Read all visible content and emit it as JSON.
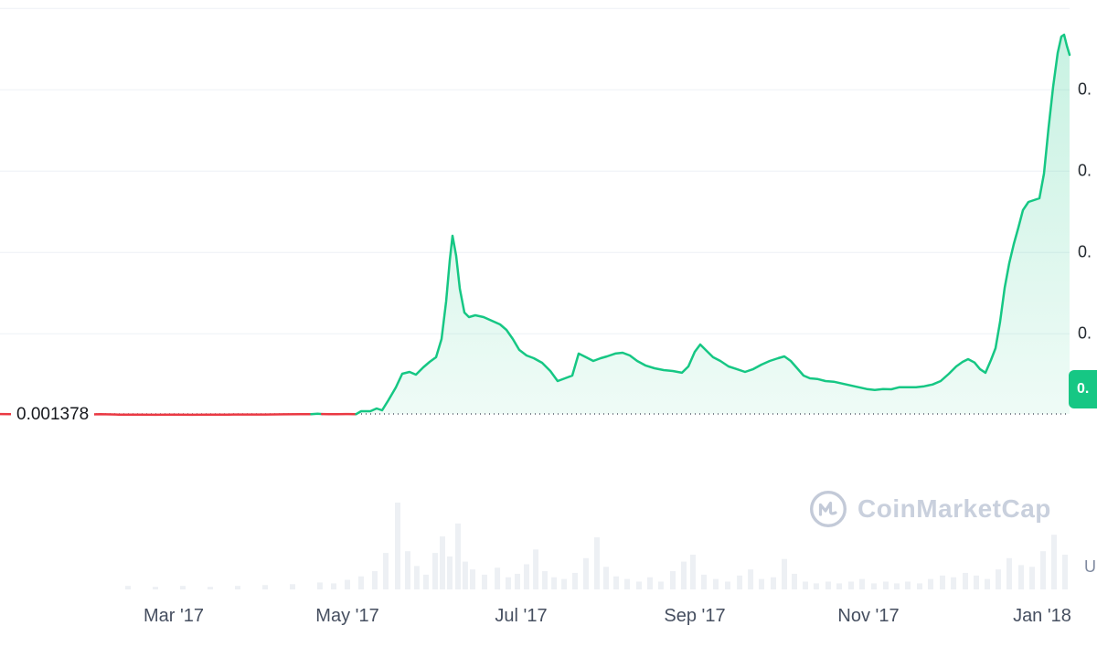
{
  "reference": {
    "price_label": "0.001378"
  },
  "badge": {
    "price_label": "0."
  },
  "watermark": {
    "brand": "CoinMarketCap"
  },
  "axis": {
    "x_labels": [
      "Mar '17",
      "May '17",
      "Jul '17",
      "Sep '17",
      "Nov '17",
      "Jan '18"
    ],
    "y_right_labels": [
      "0.",
      "0.",
      "0.",
      "0."
    ],
    "currency_partial_label": "U"
  },
  "chart_data": {
    "type": "area",
    "title": "",
    "x_tick_labels": [
      "Mar '17",
      "May '17",
      "Jul '17",
      "Sep '17",
      "Nov '17",
      "Jan '18"
    ],
    "y_tick_labels_visible": [
      "0.",
      "0.",
      "0.",
      "0."
    ],
    "reference_value": 0.001378,
    "y_gridline_values_estimated": [
      0.1,
      0.2,
      0.3,
      0.4,
      0.5
    ],
    "ylim": [
      0,
      0.52
    ],
    "legend": "off",
    "grid": "horizontal",
    "colors": {
      "up": "#16c784",
      "down": "#ea3943",
      "volume": "#edf0f4",
      "gridline": "#eef1f6",
      "reference_dots": "#565e6c"
    },
    "series": [
      {
        "name": "Price",
        "unit": "USD (axis labels truncated to 0.)",
        "points": [
          [
            0.0,
            0.0013
          ],
          [
            0.013,
            0.001
          ],
          [
            0.03,
            0.0008
          ],
          [
            0.047,
            0.0006
          ],
          [
            0.064,
            0.0008
          ],
          [
            0.081,
            0.0007
          ],
          [
            0.094,
            0.001
          ],
          [
            0.111,
            0.0006
          ],
          [
            0.128,
            0.0005
          ],
          [
            0.145,
            0.0004
          ],
          [
            0.162,
            0.0005
          ],
          [
            0.179,
            0.0004
          ],
          [
            0.196,
            0.0005
          ],
          [
            0.214,
            0.0006
          ],
          [
            0.231,
            0.0007
          ],
          [
            0.248,
            0.0007
          ],
          [
            0.265,
            0.0009
          ],
          [
            0.282,
            0.0011
          ],
          [
            0.291,
            0.0012
          ],
          [
            0.297,
            0.0016
          ],
          [
            0.301,
            0.0013
          ],
          [
            0.308,
            0.0011
          ],
          [
            0.315,
            0.0012
          ],
          [
            0.323,
            0.0013
          ],
          [
            0.333,
            0.0012
          ],
          [
            0.3376,
            0.0048
          ],
          [
            0.3462,
            0.0048
          ],
          [
            0.3521,
            0.0081
          ],
          [
            0.3573,
            0.0059
          ],
          [
            0.3632,
            0.0183
          ],
          [
            0.3701,
            0.034
          ],
          [
            0.3761,
            0.0508
          ],
          [
            0.3829,
            0.0531
          ],
          [
            0.3889,
            0.0497
          ],
          [
            0.3957,
            0.0587
          ],
          [
            0.4017,
            0.0654
          ],
          [
            0.4077,
            0.0711
          ],
          [
            0.4128,
            0.0935
          ],
          [
            0.4171,
            0.1396
          ],
          [
            0.4205,
            0.1902
          ],
          [
            0.4231,
            0.2205
          ],
          [
            0.4265,
            0.1958
          ],
          [
            0.4299,
            0.1553
          ],
          [
            0.4342,
            0.1261
          ],
          [
            0.4385,
            0.1205
          ],
          [
            0.4444,
            0.1227
          ],
          [
            0.4521,
            0.1205
          ],
          [
            0.4598,
            0.116
          ],
          [
            0.4675,
            0.1115
          ],
          [
            0.4735,
            0.1048
          ],
          [
            0.4795,
            0.0935
          ],
          [
            0.4855,
            0.0801
          ],
          [
            0.4923,
            0.0733
          ],
          [
            0.4991,
            0.0699
          ],
          [
            0.5068,
            0.0643
          ],
          [
            0.5145,
            0.0542
          ],
          [
            0.5214,
            0.0418
          ],
          [
            0.5282,
            0.0452
          ],
          [
            0.535,
            0.0486
          ],
          [
            0.541,
            0.0756
          ],
          [
            0.5479,
            0.0711
          ],
          [
            0.5547,
            0.0666
          ],
          [
            0.5615,
            0.0699
          ],
          [
            0.5675,
            0.0722
          ],
          [
            0.5752,
            0.0756
          ],
          [
            0.5821,
            0.0767
          ],
          [
            0.5889,
            0.0733
          ],
          [
            0.5957,
            0.0666
          ],
          [
            0.6034,
            0.061
          ],
          [
            0.612,
            0.0576
          ],
          [
            0.6205,
            0.0553
          ],
          [
            0.6291,
            0.0542
          ],
          [
            0.6376,
            0.052
          ],
          [
            0.6436,
            0.0598
          ],
          [
            0.6496,
            0.0778
          ],
          [
            0.6547,
            0.0868
          ],
          [
            0.6607,
            0.0789
          ],
          [
            0.6667,
            0.0711
          ],
          [
            0.6735,
            0.0666
          ],
          [
            0.6812,
            0.0598
          ],
          [
            0.6889,
            0.0565
          ],
          [
            0.6966,
            0.0531
          ],
          [
            0.7043,
            0.0565
          ],
          [
            0.712,
            0.0621
          ],
          [
            0.7197,
            0.0666
          ],
          [
            0.7274,
            0.0699
          ],
          [
            0.7333,
            0.0722
          ],
          [
            0.7393,
            0.0666
          ],
          [
            0.7453,
            0.0576
          ],
          [
            0.7513,
            0.0486
          ],
          [
            0.7573,
            0.0452
          ],
          [
            0.7641,
            0.0444
          ],
          [
            0.7718,
            0.0418
          ],
          [
            0.7795,
            0.041
          ],
          [
            0.7872,
            0.0388
          ],
          [
            0.7949,
            0.0365
          ],
          [
            0.8026,
            0.0343
          ],
          [
            0.8103,
            0.032
          ],
          [
            0.8179,
            0.0309
          ],
          [
            0.8256,
            0.032
          ],
          [
            0.8333,
            0.0317
          ],
          [
            0.841,
            0.0343
          ],
          [
            0.8487,
            0.0343
          ],
          [
            0.8564,
            0.0343
          ],
          [
            0.8641,
            0.0354
          ],
          [
            0.8718,
            0.0376
          ],
          [
            0.8795,
            0.0418
          ],
          [
            0.8872,
            0.0508
          ],
          [
            0.894,
            0.0598
          ],
          [
            0.9,
            0.0654
          ],
          [
            0.9051,
            0.0688
          ],
          [
            0.9111,
            0.0646
          ],
          [
            0.9162,
            0.0565
          ],
          [
            0.9214,
            0.052
          ],
          [
            0.9265,
            0.0677
          ],
          [
            0.9308,
            0.0823
          ],
          [
            0.935,
            0.1149
          ],
          [
            0.9393,
            0.1565
          ],
          [
            0.9436,
            0.1868
          ],
          [
            0.9479,
            0.2104
          ],
          [
            0.9521,
            0.2306
          ],
          [
            0.9564,
            0.252
          ],
          [
            0.9615,
            0.2621
          ],
          [
            0.9667,
            0.2643
          ],
          [
            0.9718,
            0.2666
          ],
          [
            0.9761,
            0.2969
          ],
          [
            0.9803,
            0.3531
          ],
          [
            0.9846,
            0.4036
          ],
          [
            0.9889,
            0.4452
          ],
          [
            0.9923,
            0.4654
          ],
          [
            0.9949,
            0.4677
          ],
          [
            0.9974,
            0.4542
          ],
          [
            1.0,
            0.443
          ]
        ]
      }
    ],
    "volume_bars": [
      [
        0.1197,
        0.04
      ],
      [
        0.1453,
        0.03
      ],
      [
        0.1709,
        0.04
      ],
      [
        0.1966,
        0.03
      ],
      [
        0.2222,
        0.04
      ],
      [
        0.2479,
        0.05
      ],
      [
        0.2735,
        0.06
      ],
      [
        0.2991,
        0.08
      ],
      [
        0.312,
        0.07
      ],
      [
        0.3248,
        0.11
      ],
      [
        0.3376,
        0.15
      ],
      [
        0.3504,
        0.21
      ],
      [
        0.3607,
        0.42
      ],
      [
        0.3718,
        1.0
      ],
      [
        0.3812,
        0.44
      ],
      [
        0.3897,
        0.27
      ],
      [
        0.3983,
        0.17
      ],
      [
        0.4068,
        0.42
      ],
      [
        0.4137,
        0.61
      ],
      [
        0.4205,
        0.38
      ],
      [
        0.4282,
        0.76
      ],
      [
        0.435,
        0.32
      ],
      [
        0.4419,
        0.23
      ],
      [
        0.453,
        0.17
      ],
      [
        0.465,
        0.25
      ],
      [
        0.4752,
        0.14
      ],
      [
        0.4838,
        0.18
      ],
      [
        0.4923,
        0.29
      ],
      [
        0.5009,
        0.46
      ],
      [
        0.5094,
        0.21
      ],
      [
        0.518,
        0.14
      ],
      [
        0.5274,
        0.12
      ],
      [
        0.5376,
        0.19
      ],
      [
        0.5479,
        0.36
      ],
      [
        0.5581,
        0.6
      ],
      [
        0.5667,
        0.26
      ],
      [
        0.5761,
        0.15
      ],
      [
        0.5863,
        0.12
      ],
      [
        0.5974,
        0.09
      ],
      [
        0.6077,
        0.14
      ],
      [
        0.6179,
        0.09
      ],
      [
        0.6291,
        0.21
      ],
      [
        0.6393,
        0.32
      ],
      [
        0.6479,
        0.4
      ],
      [
        0.6581,
        0.17
      ],
      [
        0.6692,
        0.12
      ],
      [
        0.6803,
        0.09
      ],
      [
        0.6915,
        0.16
      ],
      [
        0.7018,
        0.23
      ],
      [
        0.712,
        0.12
      ],
      [
        0.7231,
        0.14
      ],
      [
        0.7333,
        0.35
      ],
      [
        0.7427,
        0.18
      ],
      [
        0.753,
        0.09
      ],
      [
        0.7632,
        0.07
      ],
      [
        0.7744,
        0.09
      ],
      [
        0.7846,
        0.07
      ],
      [
        0.7957,
        0.09
      ],
      [
        0.806,
        0.12
      ],
      [
        0.8171,
        0.07
      ],
      [
        0.8282,
        0.09
      ],
      [
        0.8385,
        0.07
      ],
      [
        0.8487,
        0.09
      ],
      [
        0.8598,
        0.07
      ],
      [
        0.8701,
        0.12
      ],
      [
        0.8812,
        0.16
      ],
      [
        0.8915,
        0.14
      ],
      [
        0.9026,
        0.19
      ],
      [
        0.9128,
        0.16
      ],
      [
        0.9231,
        0.12
      ],
      [
        0.9333,
        0.23
      ],
      [
        0.9436,
        0.36
      ],
      [
        0.9547,
        0.28
      ],
      [
        0.965,
        0.26
      ],
      [
        0.9752,
        0.44
      ],
      [
        0.9855,
        0.63
      ],
      [
        0.9957,
        0.4
      ]
    ]
  }
}
